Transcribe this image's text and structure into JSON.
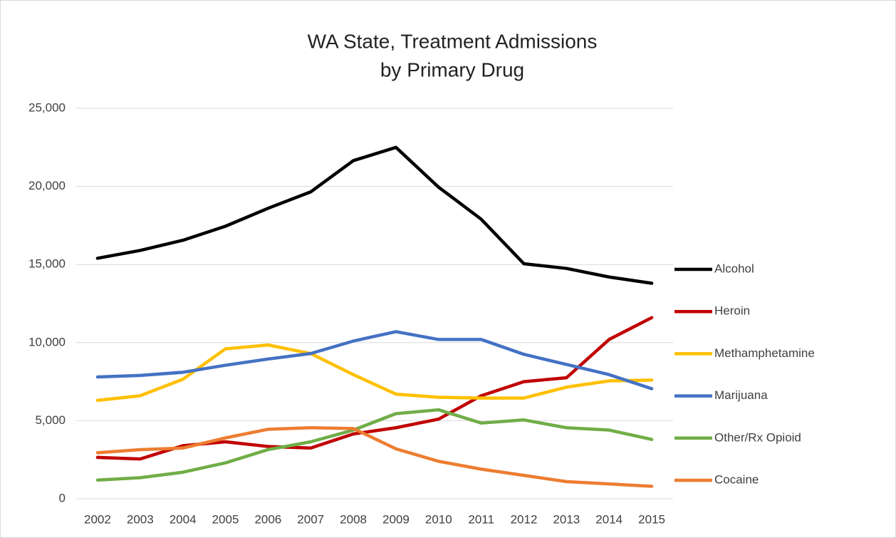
{
  "chart_data": {
    "type": "line",
    "title": [
      "WA State, Treatment Admissions",
      "by Primary Drug"
    ],
    "categories": [
      "2002",
      "2003",
      "2004",
      "2005",
      "2006",
      "2007",
      "2008",
      "2009",
      "2010",
      "2011",
      "2012",
      "2013",
      "2014",
      "2015"
    ],
    "series": [
      {
        "name": "Alcohol",
        "color": "#000000",
        "values": [
          15400,
          15900,
          16550,
          17450,
          18600,
          19650,
          21650,
          22500,
          19950,
          17900,
          15050,
          14750,
          14200,
          13800
        ]
      },
      {
        "name": "Heroin",
        "color": "#c00000",
        "values": [
          2650,
          2550,
          3400,
          3650,
          3350,
          3250,
          4150,
          4550,
          5100,
          6600,
          7500,
          7750,
          10200,
          11600
        ]
      },
      {
        "name": "Methamphetamine",
        "color": "#ffc000",
        "values": [
          6300,
          6600,
          7650,
          9600,
          9850,
          9300,
          7950,
          6700,
          6500,
          6450,
          6450,
          7150,
          7550,
          7600
        ]
      },
      {
        "name": "Marijuana",
        "color": "#4472c4",
        "values": [
          7800,
          7900,
          8100,
          8550,
          8950,
          9300,
          10100,
          10700,
          10200,
          10200,
          9250,
          8600,
          7950,
          7050
        ]
      },
      {
        "name": "Other/Rx Opioid",
        "color": "#70ad47",
        "values": [
          1200,
          1350,
          1700,
          2300,
          3150,
          3650,
          4400,
          5450,
          5700,
          4850,
          5050,
          4550,
          4400,
          3800
        ]
      },
      {
        "name": "Cocaine",
        "color": "#ed7d31",
        "values": [
          2950,
          3150,
          3250,
          3900,
          4450,
          4550,
          4500,
          3200,
          2400,
          1900,
          1500,
          1100,
          950,
          800
        ]
      }
    ],
    "ylim": [
      0,
      25000
    ],
    "yticks": [
      0,
      {
        "value": 5000,
        "label": "5,000"
      },
      {
        "value": 10000,
        "label": "10,000"
      },
      {
        "value": 15000,
        "label": "15,000"
      },
      {
        "value": 20000,
        "label": "20,000"
      },
      {
        "value": 25000,
        "label": "25,000"
      }
    ],
    "grid": true,
    "legend": "right"
  }
}
